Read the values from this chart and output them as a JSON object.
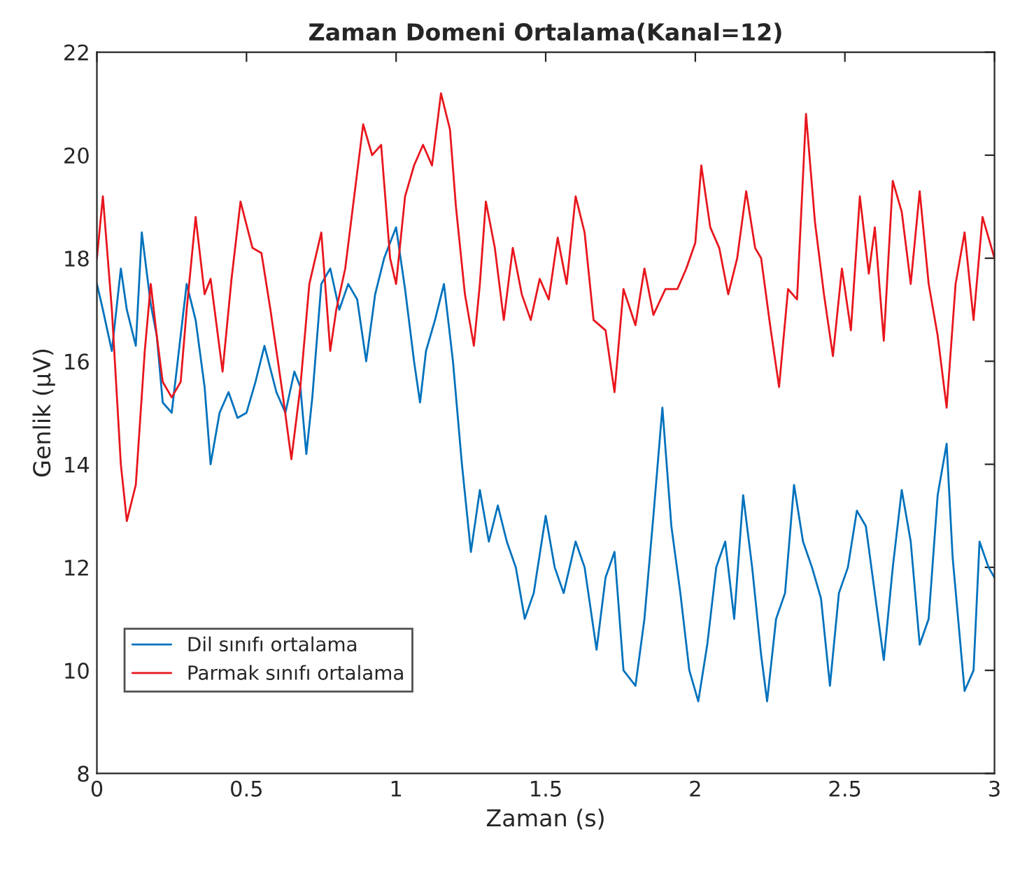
{
  "chart_data": {
    "type": "line",
    "title": "Zaman Domeni Ortalama(Kanal=12)",
    "xlabel": "Zaman (s)",
    "ylabel": "Genlik (µV)",
    "xlim": [
      0,
      3
    ],
    "ylim": [
      8,
      22
    ],
    "xticks": [
      0,
      0.5,
      1,
      1.5,
      2,
      2.5,
      3
    ],
    "yticks": [
      8,
      10,
      12,
      14,
      16,
      18,
      20,
      22
    ],
    "grid": false,
    "legend": "bottom left",
    "marker": "none",
    "line_style": "solid",
    "series": [
      {
        "name": "Dil sınıfı ortalama",
        "color": "#0072bd",
        "x": [
          0,
          0.02,
          0.05,
          0.08,
          0.1,
          0.13,
          0.15,
          0.18,
          0.2,
          0.22,
          0.25,
          0.28,
          0.3,
          0.33,
          0.36,
          0.38,
          0.41,
          0.44,
          0.47,
          0.5,
          0.53,
          0.56,
          0.6,
          0.63,
          0.66,
          0.68,
          0.7,
          0.72,
          0.75,
          0.78,
          0.81,
          0.84,
          0.87,
          0.9,
          0.93,
          0.96,
          1.0,
          1.03,
          1.06,
          1.08,
          1.1,
          1.13,
          1.16,
          1.19,
          1.22,
          1.25,
          1.28,
          1.31,
          1.34,
          1.37,
          1.4,
          1.43,
          1.46,
          1.5,
          1.53,
          1.56,
          1.6,
          1.63,
          1.67,
          1.7,
          1.73,
          1.76,
          1.8,
          1.83,
          1.86,
          1.89,
          1.92,
          1.95,
          1.98,
          2.01,
          2.04,
          2.07,
          2.1,
          2.13,
          2.16,
          2.19,
          2.22,
          2.24,
          2.27,
          2.3,
          2.33,
          2.36,
          2.39,
          2.42,
          2.45,
          2.48,
          2.51,
          2.54,
          2.57,
          2.6,
          2.63,
          2.66,
          2.69,
          2.72,
          2.75,
          2.78,
          2.81,
          2.84,
          2.86,
          2.9,
          2.93,
          2.95,
          2.98,
          3.0
        ],
        "values": [
          17.5,
          17.0,
          16.2,
          17.8,
          17.0,
          16.3,
          18.5,
          17.1,
          16.5,
          15.2,
          15.0,
          16.5,
          17.5,
          16.8,
          15.5,
          14.0,
          15.0,
          15.4,
          14.9,
          15.0,
          15.6,
          16.3,
          15.4,
          15.0,
          15.8,
          15.5,
          14.2,
          15.3,
          17.5,
          17.8,
          17.0,
          17.5,
          17.2,
          16.0,
          17.3,
          18.0,
          18.6,
          17.4,
          16.0,
          15.2,
          16.2,
          16.8,
          17.5,
          16.0,
          14.0,
          12.3,
          13.5,
          12.5,
          13.2,
          12.5,
          12.0,
          11.0,
          11.5,
          13.0,
          12.0,
          11.5,
          12.5,
          12.0,
          10.4,
          11.8,
          12.3,
          10.0,
          9.7,
          11.0,
          13.0,
          15.1,
          12.8,
          11.5,
          10.0,
          9.4,
          10.5,
          12.0,
          12.5,
          11.0,
          13.4,
          12.0,
          10.3,
          9.4,
          11.0,
          11.5,
          13.6,
          12.5,
          12.0,
          11.4,
          9.7,
          11.5,
          12.0,
          13.1,
          12.8,
          11.5,
          10.2,
          12.0,
          13.5,
          12.5,
          10.5,
          11.0,
          13.4,
          14.4,
          12.2,
          9.6,
          10.0,
          12.5,
          12.0,
          11.8
        ]
      },
      {
        "name": "Parmak sınıfı ortalama",
        "color": "#e8161d",
        "x": [
          0,
          0.02,
          0.05,
          0.08,
          0.1,
          0.13,
          0.16,
          0.18,
          0.2,
          0.22,
          0.25,
          0.28,
          0.3,
          0.33,
          0.36,
          0.38,
          0.42,
          0.45,
          0.48,
          0.52,
          0.55,
          0.58,
          0.62,
          0.65,
          0.68,
          0.71,
          0.75,
          0.78,
          0.8,
          0.83,
          0.86,
          0.89,
          0.92,
          0.95,
          0.98,
          1.0,
          1.03,
          1.06,
          1.09,
          1.12,
          1.15,
          1.18,
          1.2,
          1.23,
          1.26,
          1.28,
          1.3,
          1.33,
          1.36,
          1.39,
          1.42,
          1.45,
          1.48,
          1.51,
          1.54,
          1.57,
          1.6,
          1.63,
          1.66,
          1.7,
          1.73,
          1.76,
          1.8,
          1.83,
          1.86,
          1.9,
          1.94,
          1.97,
          2.0,
          2.02,
          2.05,
          2.08,
          2.11,
          2.14,
          2.17,
          2.2,
          2.22,
          2.25,
          2.28,
          2.31,
          2.34,
          2.37,
          2.4,
          2.43,
          2.46,
          2.49,
          2.52,
          2.55,
          2.58,
          2.6,
          2.63,
          2.66,
          2.69,
          2.72,
          2.75,
          2.78,
          2.81,
          2.84,
          2.87,
          2.9,
          2.93,
          2.96,
          3.0
        ],
        "values": [
          18.0,
          19.2,
          17.0,
          14.0,
          12.9,
          13.6,
          16.2,
          17.5,
          16.5,
          15.6,
          15.3,
          15.6,
          17.0,
          18.8,
          17.3,
          17.6,
          15.8,
          17.6,
          19.1,
          18.2,
          18.1,
          17.0,
          15.4,
          14.1,
          15.5,
          17.5,
          18.5,
          16.2,
          17.0,
          17.8,
          19.2,
          20.6,
          20.0,
          20.2,
          18.0,
          17.5,
          19.2,
          19.8,
          20.2,
          19.8,
          21.2,
          20.5,
          19.0,
          17.3,
          16.3,
          17.5,
          19.1,
          18.2,
          16.8,
          18.2,
          17.3,
          16.8,
          17.6,
          17.2,
          18.4,
          17.5,
          19.2,
          18.5,
          16.8,
          16.6,
          15.4,
          17.4,
          16.7,
          17.8,
          16.9,
          17.4,
          17.4,
          17.8,
          18.3,
          19.8,
          18.6,
          18.2,
          17.3,
          18.0,
          19.3,
          18.2,
          18.0,
          16.7,
          15.5,
          17.4,
          17.2,
          20.8,
          18.7,
          17.3,
          16.1,
          17.8,
          16.6,
          19.2,
          17.7,
          18.6,
          16.4,
          19.5,
          18.9,
          17.5,
          19.3,
          17.5,
          16.5,
          15.1,
          17.5,
          18.5,
          16.8,
          18.8,
          18.0
        ]
      }
    ]
  }
}
